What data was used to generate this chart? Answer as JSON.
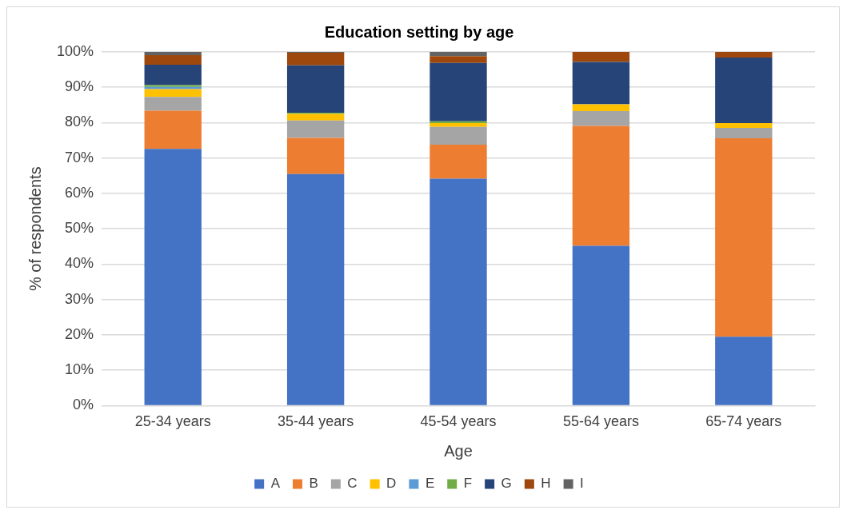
{
  "chart_data": {
    "type": "bar",
    "title": "Education setting by age",
    "xlabel": "Age",
    "ylabel": "% of respondents",
    "categories": [
      "25-34 years",
      "35-44 years",
      "45-54 years",
      "55-64 years",
      "65-74 years"
    ],
    "stacked": true,
    "ylim": [
      0,
      100
    ],
    "yticks": [
      {
        "value": 0,
        "label": "0%"
      },
      {
        "value": 10,
        "label": "10%"
      },
      {
        "value": 20,
        "label": "20%"
      },
      {
        "value": 30,
        "label": "30%"
      },
      {
        "value": 40,
        "label": "40%"
      },
      {
        "value": 50,
        "label": "50%"
      },
      {
        "value": 60,
        "label": "60%"
      },
      {
        "value": 70,
        "label": "70%"
      },
      {
        "value": 80,
        "label": "80%"
      },
      {
        "value": 90,
        "label": "90%"
      },
      {
        "value": 100,
        "label": "100%"
      }
    ],
    "grid": "y",
    "legend": "bottom",
    "series": [
      {
        "name": "A",
        "color": "#4472c4",
        "values": [
          72.6,
          65.5,
          64.2,
          45.2,
          19.5
        ]
      },
      {
        "name": "B",
        "color": "#ed7d31",
        "values": [
          10.8,
          10.2,
          9.6,
          33.9,
          56.1
        ]
      },
      {
        "name": "C",
        "color": "#a5a5a5",
        "values": [
          3.9,
          4.9,
          5.0,
          4.2,
          2.9
        ]
      },
      {
        "name": "D",
        "color": "#ffc000",
        "values": [
          2.2,
          1.9,
          1.1,
          1.9,
          1.4
        ]
      },
      {
        "name": "E",
        "color": "#5b9bd5",
        "values": [
          0.6,
          0,
          0,
          0,
          0
        ]
      },
      {
        "name": "F",
        "color": "#70ad47",
        "values": [
          0.5,
          0.3,
          0.5,
          0,
          0
        ]
      },
      {
        "name": "G",
        "color": "#264478",
        "values": [
          5.8,
          13.4,
          16.5,
          12.0,
          18.5
        ]
      },
      {
        "name": "H",
        "color": "#9e480e",
        "values": [
          2.7,
          3.6,
          1.9,
          2.8,
          1.6
        ]
      },
      {
        "name": "I",
        "color": "#636363",
        "values": [
          0.9,
          0.2,
          1.2,
          0,
          0
        ]
      }
    ]
  }
}
